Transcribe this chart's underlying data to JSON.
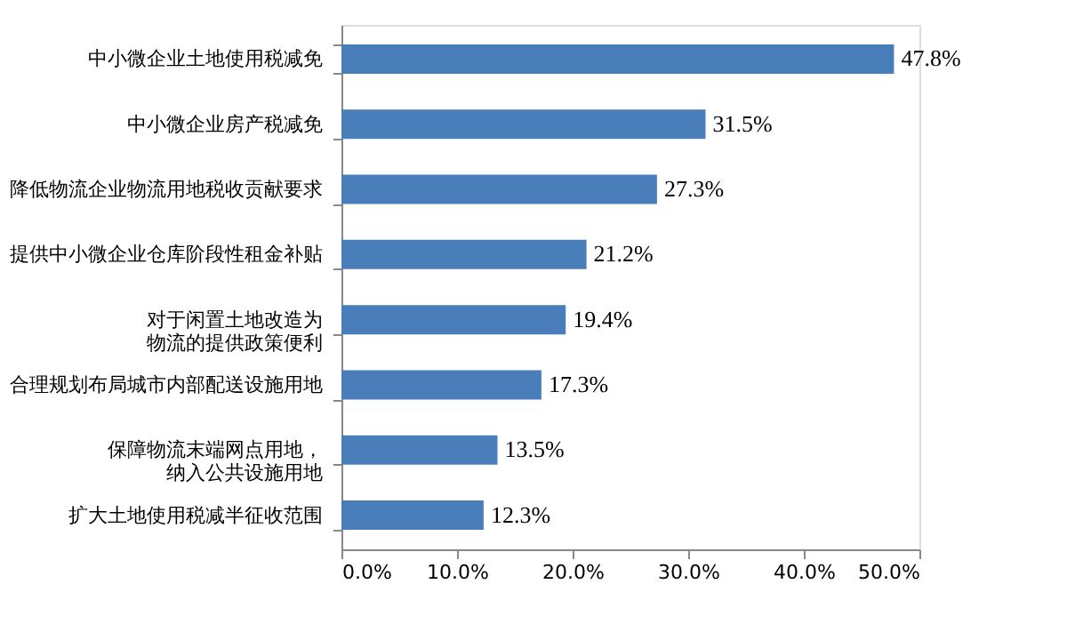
{
  "chart_data": {
    "type": "bar",
    "orientation": "horizontal",
    "categories": [
      "中小微企业土地使用税减免",
      "中小微企业房产税减免",
      "降低物流企业物流用地税收贡献要求",
      "提供中小微企业仓库阶段性租金补贴",
      "对于闲置土地改造为物流的提供政策便利",
      "合理规划布局城市内部配送设施用地",
      "保障物流末端网点用地，纳入公共设施用地",
      "扩大土地使用税减半征收范围"
    ],
    "values": [
      47.8,
      31.5,
      27.3,
      21.2,
      19.4,
      17.3,
      13.5,
      12.3
    ],
    "value_labels": [
      "47.8%",
      "31.5%",
      "27.3%",
      "21.2%",
      "19.4%",
      "17.3%",
      "13.5%",
      "12.3%"
    ],
    "color": "#4a7ebb",
    "xlim": [
      0,
      50
    ],
    "xticks": [
      {
        "value": 0,
        "label": "0.0%"
      },
      {
        "value": 10,
        "label": "10.0%"
      },
      {
        "value": 20,
        "label": "20.0%"
      },
      {
        "value": 30,
        "label": "30.0%"
      },
      {
        "value": 40,
        "label": "40.0%"
      },
      {
        "value": 50,
        "label": "50.0%"
      }
    ],
    "grid": false
  }
}
